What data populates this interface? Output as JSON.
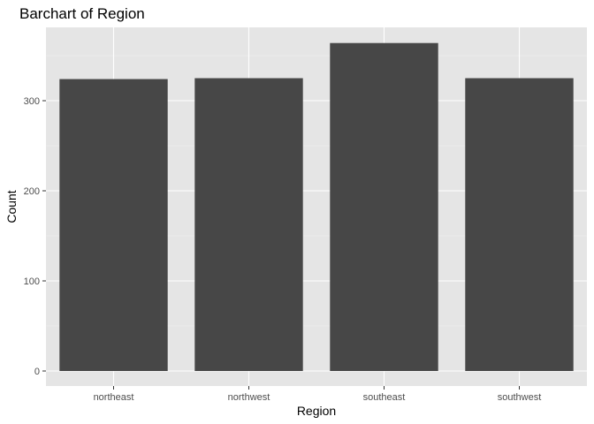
{
  "chart_data": {
    "type": "bar",
    "title": "Barchart of Region",
    "xlabel": "Region",
    "ylabel": "Count",
    "categories": [
      "northeast",
      "northwest",
      "southeast",
      "southwest"
    ],
    "values": [
      324,
      325,
      364,
      325
    ],
    "ylim": [
      0,
      382
    ],
    "yticks": [
      0,
      100,
      200,
      300
    ],
    "grid": true,
    "colors": {
      "bar": "#474747",
      "panel_background": "#e5e5e5",
      "grid": "#ffffff"
    }
  }
}
